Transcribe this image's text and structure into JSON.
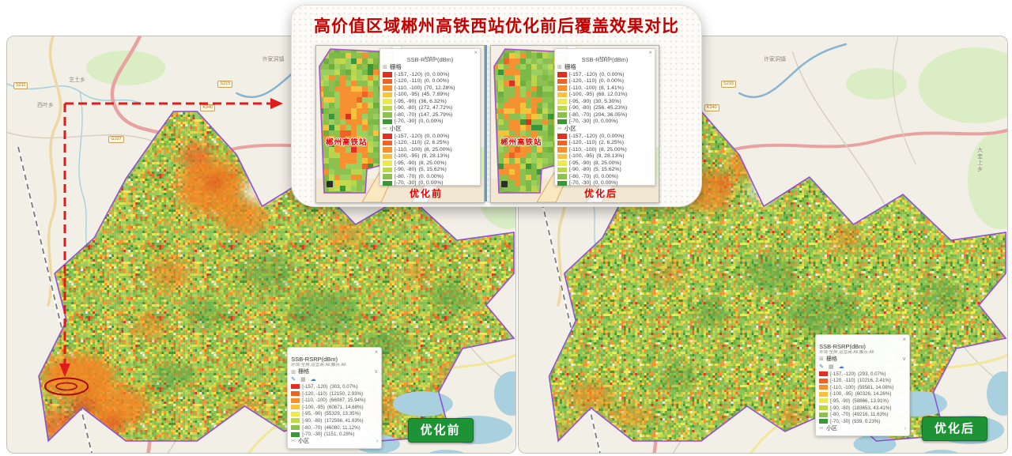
{
  "title": "高价值区域郴州高铁西站优化前后覆盖效果对比",
  "icons": {
    "handle_dash": "—",
    "handle_dots": "••••",
    "close": "×",
    "grid": "⊞",
    "cell": "✂",
    "pencil": "✎",
    "table": "▦",
    "cloud": "☁",
    "chevron_down": "∨",
    "chevron_right": "›"
  },
  "map_labels": {
    "places": [
      "芝土乡",
      "西叶乡",
      "许家洞镇",
      "大奎上乡"
    ],
    "shields": [
      "S211",
      "S215",
      "K340",
      "G107"
    ]
  },
  "popup": {
    "before": {
      "caption": "优化前",
      "station": "郴州高铁站",
      "legend_title": "SSB-RSRP(dBm)",
      "grid_label": "栅格",
      "cell_label": "小区",
      "grid_rows": [
        {
          "c": "#e02f23",
          "r": "[-157, -120)",
          "v": "(0, 0.00%)"
        },
        {
          "c": "#ef6426",
          "r": "[-120, -110)",
          "v": "(0, 0.00%)"
        },
        {
          "c": "#f59130",
          "r": "[-110, -100)",
          "v": "(70, 12.28%)"
        },
        {
          "c": "#f9c23c",
          "r": "[-100, -95)",
          "v": "(45, 7.89%)"
        },
        {
          "c": "#ece94c",
          "r": "[-95, -90)",
          "v": "(36, 6.32%)"
        },
        {
          "c": "#bcd74a",
          "r": "[-90, -80)",
          "v": "(272, 47.72%)"
        },
        {
          "c": "#8cc152",
          "r": "[-80, -70)",
          "v": "(147, 25.79%)"
        },
        {
          "c": "#3a9639",
          "r": "[-70, -30]",
          "v": "(0, 0.00%)"
        }
      ],
      "cell_rows": [
        {
          "c": "#e02f23",
          "r": "[-157, -120)",
          "v": "(0, 0.00%)"
        },
        {
          "c": "#ef6426",
          "r": "[-120, -110)",
          "v": "(2, 6.25%)"
        },
        {
          "c": "#f59130",
          "r": "[-110, -100)",
          "v": "(8, 25.00%)"
        },
        {
          "c": "#f9c23c",
          "r": "[-100, -95)",
          "v": "(9, 28.13%)"
        },
        {
          "c": "#ece94c",
          "r": "[-95, -90)",
          "v": "(8, 25.00%)"
        },
        {
          "c": "#bcd74a",
          "r": "[-90, -80)",
          "v": "(5, 15.62%)"
        },
        {
          "c": "#8cc152",
          "r": "[-80, -70)",
          "v": "(0, 0.00%)"
        },
        {
          "c": "#3a9639",
          "r": "[-70, -30]",
          "v": "(0, 0.00%)"
        }
      ]
    },
    "after": {
      "caption": "优化后",
      "station": "郴州高铁站",
      "legend_title": "SSB-RSRP(dBm)",
      "grid_label": "栅格",
      "cell_label": "小区",
      "grid_rows": [
        {
          "c": "#e02f23",
          "r": "[-157, -120)",
          "v": "(0, 0.00%)"
        },
        {
          "c": "#ef6426",
          "r": "[-120, -110)",
          "v": "(0, 0.00%)"
        },
        {
          "c": "#f59130",
          "r": "[-110, -100)",
          "v": "(8, 1.41%)"
        },
        {
          "c": "#f9c23c",
          "r": "[-100, -95)",
          "v": "(68, 12.01%)"
        },
        {
          "c": "#ece94c",
          "r": "[-95, -90)",
          "v": "(30, 5.30%)"
        },
        {
          "c": "#bcd74a",
          "r": "[-90, -80)",
          "v": "(256, 45.23%)"
        },
        {
          "c": "#8cc152",
          "r": "[-80, -70)",
          "v": "(204, 36.05%)"
        },
        {
          "c": "#3a9639",
          "r": "[-70, -30]",
          "v": "(0, 0.00%)"
        }
      ],
      "cell_rows": [
        {
          "c": "#e02f23",
          "r": "[-157, -120)",
          "v": "(0, 0.00%)"
        },
        {
          "c": "#ef6426",
          "r": "[-120, -110)",
          "v": "(2, 6.25%)"
        },
        {
          "c": "#f59130",
          "r": "[-110, -100)",
          "v": "(8, 25.00%)"
        },
        {
          "c": "#f9c23c",
          "r": "[-100, -95)",
          "v": "(9, 28.13%)"
        },
        {
          "c": "#ece94c",
          "r": "[-95, -90)",
          "v": "(8, 25.00%)"
        },
        {
          "c": "#bcd74a",
          "r": "[-90, -80)",
          "v": "(5, 15.62%)"
        },
        {
          "c": "#8cc152",
          "r": "[-80, -70)",
          "v": "(0, 0.00%)"
        },
        {
          "c": "#3a9639",
          "r": "[-70, -30]",
          "v": "(0, 0.00%)"
        }
      ]
    }
  },
  "main": {
    "before": {
      "badge": "优化前",
      "legend": {
        "title": "SSB-RSRP(dBm)",
        "filters": "环境:全屏,运营商:All,触点:All",
        "grid_label": "栅格",
        "cell_label": "小区",
        "rows": [
          {
            "c": "#e02f23",
            "r": "[-157, -120)",
            "v": "(303, 0.07%)"
          },
          {
            "c": "#ef6426",
            "r": "[-120, -110)",
            "v": "(12150, 2.93%)"
          },
          {
            "c": "#f59130",
            "r": "[-110, -100)",
            "v": "(66087, 15.94%)"
          },
          {
            "c": "#f9c23c",
            "r": "[-100, -95)",
            "v": "(60871, 14.68%)"
          },
          {
            "c": "#ece94c",
            "r": "[-95, -90)",
            "v": "(55329, 13.35%)"
          },
          {
            "c": "#bcd74a",
            "r": "[-90, -80)",
            "v": "(172566, 41.63%)"
          },
          {
            "c": "#8cc152",
            "r": "[-80, -70)",
            "v": "(46080, 11.12%)"
          },
          {
            "c": "#3a9639",
            "r": "[-70, -30]",
            "v": "(1151, 0.28%)"
          }
        ]
      }
    },
    "after": {
      "badge": "优化后",
      "legend": {
        "title": "SSB-RSRP(dBm)",
        "filters": "环境:全屏,运营商:All,触点:All",
        "grid_label": "栅格",
        "cell_label": "小区",
        "rows": [
          {
            "c": "#e02f23",
            "r": "[-157, -120)",
            "v": "(293, 0.07%)"
          },
          {
            "c": "#ef6426",
            "r": "[-120, -110)",
            "v": "(10216, 2.41%)"
          },
          {
            "c": "#f59130",
            "r": "[-110, -100)",
            "v": "(59581, 14.08%)"
          },
          {
            "c": "#f9c23c",
            "r": "[-100, -95)",
            "v": "(60326, 14.26%)"
          },
          {
            "c": "#ece94c",
            "r": "[-95, -90)",
            "v": "(58866, 13.91%)"
          },
          {
            "c": "#bcd74a",
            "r": "[-90, -80)",
            "v": "(183653, 43.41%)"
          },
          {
            "c": "#8cc152",
            "r": "[-80, -70)",
            "v": "(49216, 11.63%)"
          },
          {
            "c": "#3a9639",
            "r": "[-70, -30]",
            "v": "(939, 0.23%)"
          }
        ]
      }
    }
  }
}
